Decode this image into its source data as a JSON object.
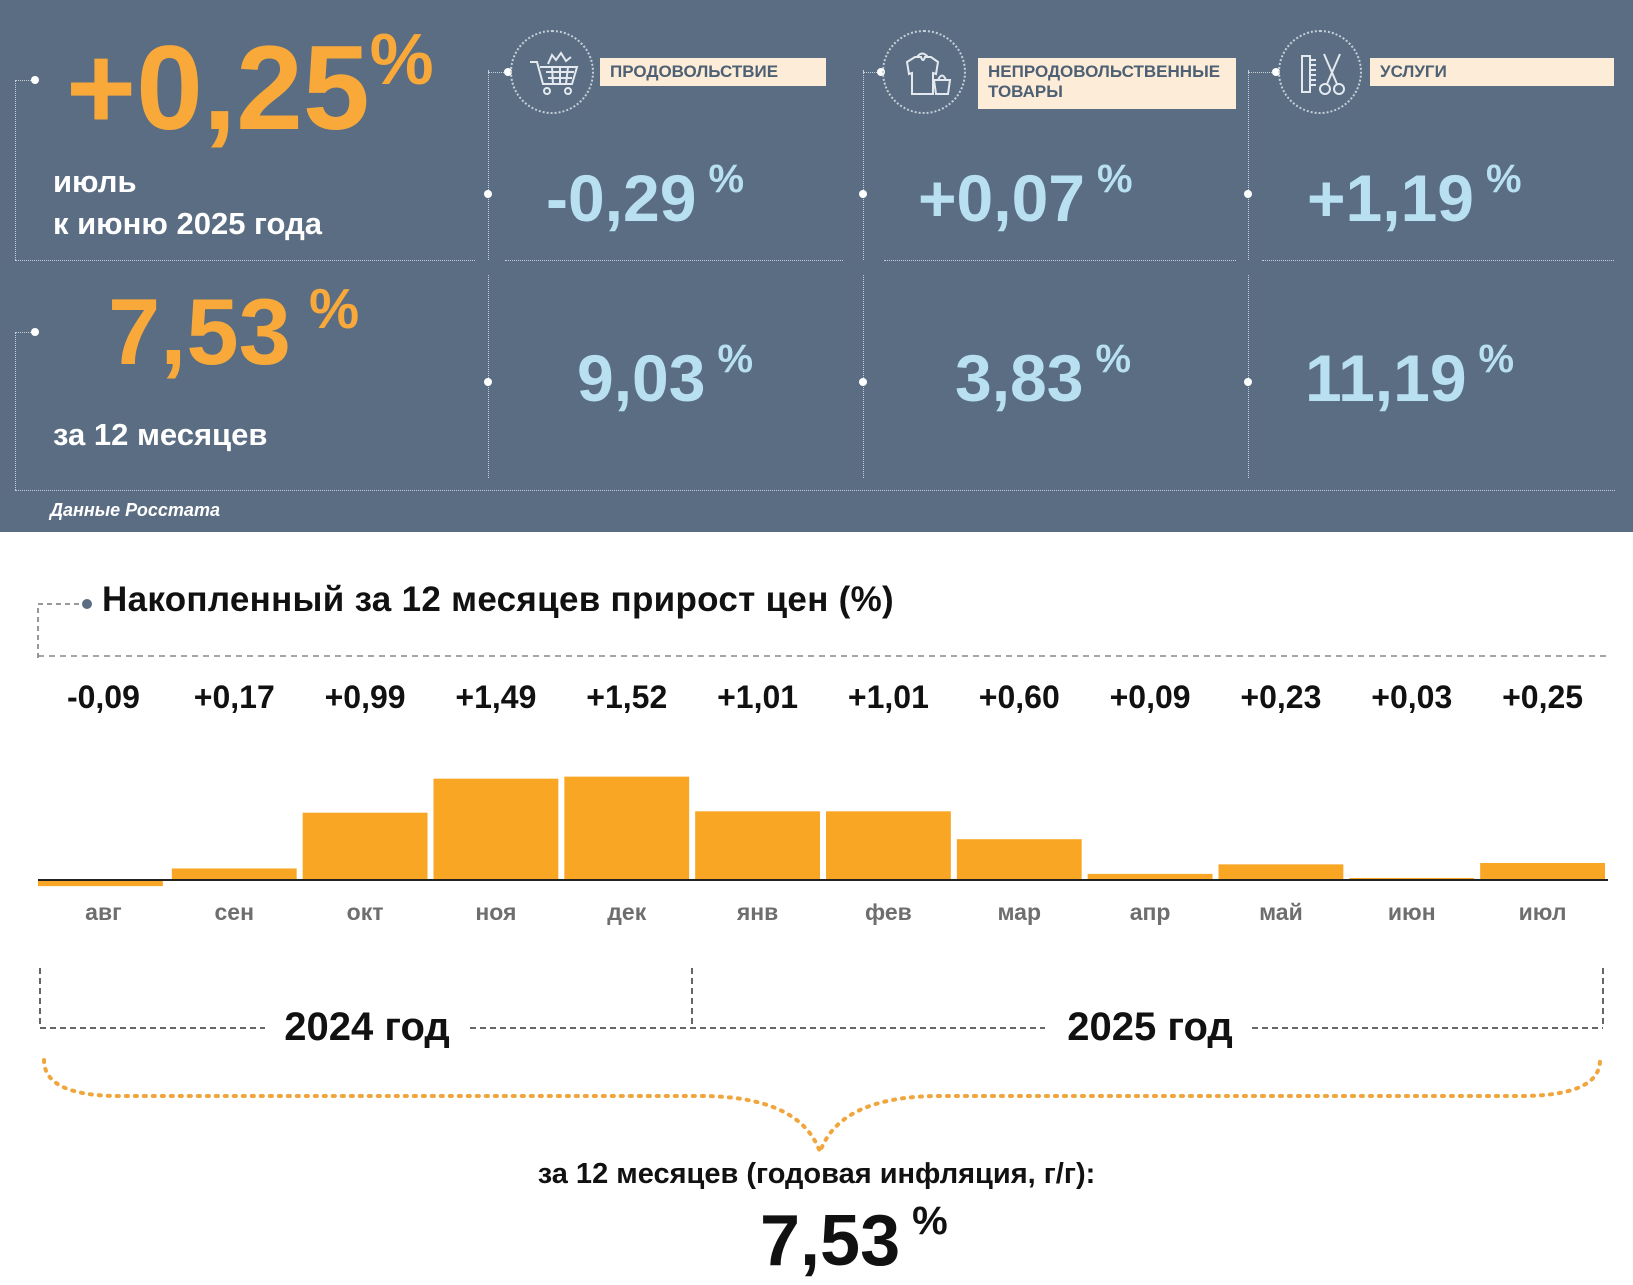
{
  "monthly": {
    "value": "+0,25",
    "unit": "%",
    "line1": "июль",
    "line2": "к июню 2025 года"
  },
  "annual": {
    "value": "7,53",
    "unit": "%",
    "label": "за 12 месяцев"
  },
  "categories": [
    {
      "label": "ПРОДОВОЛЬСТВИЕ",
      "icon": "shopping-cart-icon",
      "monthly": "-0,29",
      "annual": "9,03",
      "unit": "%"
    },
    {
      "label": "НЕПРОДОВОЛЬСТВЕННЫЕ ТОВАРЫ",
      "label_line1": "НЕПРОДОВОЛЬСТВЕННЫЕ",
      "label_line2": "ТОВАРЫ",
      "icon": "clothing-bag-icon",
      "monthly": "+0,07",
      "annual": "3,83",
      "unit": "%"
    },
    {
      "label": "УСЛУГИ",
      "icon": "comb-scissors-icon",
      "monthly": "+1,19",
      "annual": "11,19",
      "unit": "%"
    }
  ],
  "source": "Данные Росстата",
  "chart_data": {
    "type": "bar",
    "title": "Накопленный за 12 месяцев прирост цен (%)",
    "categories": [
      "авг",
      "сен",
      "окт",
      "ноя",
      "дек",
      "янв",
      "фев",
      "мар",
      "апр",
      "май",
      "июн",
      "июл"
    ],
    "values": [
      -0.09,
      0.17,
      0.99,
      1.49,
      1.52,
      1.01,
      1.01,
      0.6,
      0.09,
      0.23,
      0.03,
      0.25
    ],
    "value_labels": [
      "-0,09",
      "+0,17",
      "+0,99",
      "+1,49",
      "+1,52",
      "+1,01",
      "+1,01",
      "+0,60",
      "+0,09",
      "+0,23",
      "+0,03",
      "+0,25"
    ],
    "year_groups": [
      {
        "label": "2024 год",
        "months": [
          "авг",
          "сен",
          "окт",
          "ноя",
          "дек"
        ]
      },
      {
        "label": "2025 год",
        "months": [
          "янв",
          "фев",
          "мар",
          "апр",
          "май",
          "июн",
          "июл"
        ]
      }
    ],
    "bar_color": "#f8a623",
    "summary_label": "за 12 месяцев (годовая инфляция, г/г):",
    "summary_value": "7,53",
    "summary_unit": "%"
  },
  "colors": {
    "panel": "#5a6d82",
    "accent_orange": "#f8a93a",
    "accent_blue": "#b8e0f1",
    "label_bg": "#fdecd8"
  }
}
